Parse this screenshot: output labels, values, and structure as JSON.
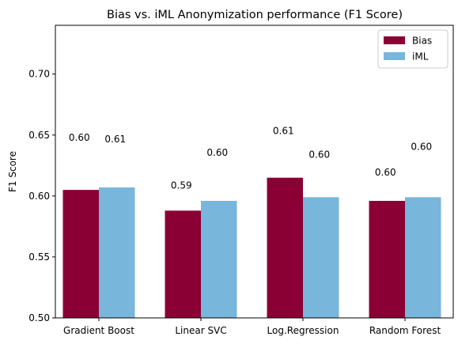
{
  "chart_data": {
    "type": "bar",
    "title": "Bias vs. iML Anonymization performance (F1 Score)",
    "xlabel": "",
    "ylabel": "F1 Score",
    "categories": [
      "Gradient Boost",
      "Linear SVC",
      "Log.Regression",
      "Random Forest"
    ],
    "series": [
      {
        "name": "Bias",
        "color": "#8b0034",
        "values": [
          0.605,
          0.588,
          0.615,
          0.596
        ],
        "labels": [
          "0.60",
          "0.59",
          "0.61",
          "0.60"
        ]
      },
      {
        "name": "iML",
        "color": "#78b6dc",
        "values": [
          0.607,
          0.596,
          0.599,
          0.599
        ],
        "labels": [
          "0.61",
          "0.60",
          "0.60",
          "0.60"
        ]
      }
    ],
    "ylim": [
      0.5,
      0.74
    ],
    "yticks": [
      0.5,
      0.55,
      0.6,
      0.65,
      0.7
    ],
    "ytick_labels": [
      "0.50",
      "0.55",
      "0.60",
      "0.65",
      "0.70"
    ],
    "legend_position": "top-right",
    "grid": false
  }
}
